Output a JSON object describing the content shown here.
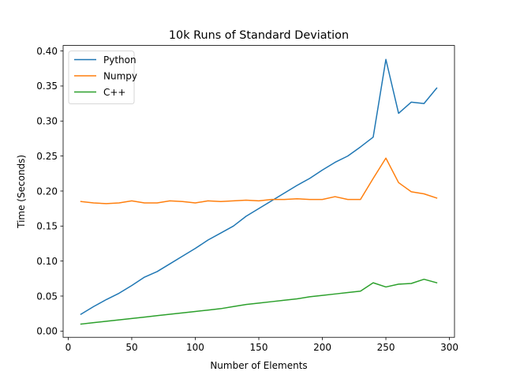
{
  "chart_data": {
    "type": "line",
    "title": "10k Runs of Standard Deviation",
    "xlabel": "Number of Elements",
    "ylabel": "Time (Seconds)",
    "xlim": [
      -4,
      304
    ],
    "ylim": [
      -0.0089,
      0.4079
    ],
    "xticks": [
      0,
      50,
      100,
      150,
      200,
      250,
      300
    ],
    "xtick_labels": [
      "0",
      "50",
      "100",
      "150",
      "200",
      "250",
      "300"
    ],
    "yticks": [
      0.0,
      0.05,
      0.1,
      0.15,
      0.2,
      0.25,
      0.3,
      0.35,
      0.4
    ],
    "ytick_labels": [
      "0.00",
      "0.05",
      "0.10",
      "0.15",
      "0.20",
      "0.25",
      "0.30",
      "0.35",
      "0.40"
    ],
    "grid": false,
    "legend_position": "top-left",
    "x": [
      10,
      20,
      30,
      40,
      50,
      60,
      70,
      80,
      90,
      100,
      110,
      120,
      130,
      140,
      150,
      160,
      170,
      180,
      190,
      200,
      210,
      220,
      230,
      240,
      250,
      260,
      270,
      280,
      290
    ],
    "series": [
      {
        "name": "Python",
        "color": "#1f77b4",
        "values": [
          0.024,
          0.035,
          0.045,
          0.054,
          0.065,
          0.077,
          0.085,
          0.096,
          0.107,
          0.118,
          0.13,
          0.14,
          0.15,
          0.164,
          0.175,
          0.186,
          0.197,
          0.208,
          0.218,
          0.23,
          0.241,
          0.25,
          0.263,
          0.277,
          0.388,
          0.311,
          0.327,
          0.325,
          0.347
        ]
      },
      {
        "name": "Numpy",
        "color": "#ff7f0e",
        "values": [
          0.185,
          0.183,
          0.182,
          0.183,
          0.186,
          0.183,
          0.183,
          0.186,
          0.185,
          0.183,
          0.186,
          0.185,
          0.186,
          0.187,
          0.186,
          0.188,
          0.188,
          0.189,
          0.188,
          0.188,
          0.192,
          0.188,
          0.188,
          0.218,
          0.247,
          0.212,
          0.199,
          0.196,
          0.19
        ]
      },
      {
        "name": "C++",
        "color": "#2ca02c",
        "values": [
          0.01,
          0.012,
          0.014,
          0.016,
          0.018,
          0.02,
          0.022,
          0.024,
          0.026,
          0.028,
          0.03,
          0.032,
          0.035,
          0.038,
          0.04,
          0.042,
          0.044,
          0.046,
          0.049,
          0.051,
          0.053,
          0.055,
          0.057,
          0.069,
          0.063,
          0.067,
          0.068,
          0.074,
          0.069
        ]
      }
    ]
  }
}
